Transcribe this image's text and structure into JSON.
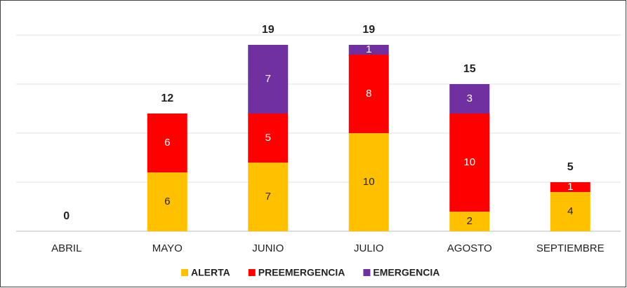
{
  "chart_data": {
    "type": "stacked_bar",
    "categories": [
      "ABRIL",
      "MAYO",
      "JUNIO",
      "JULIO",
      "AGOSTO",
      "SEPTIEMBRE"
    ],
    "series": [
      {
        "name": "ALERTA",
        "color": "#ffc000",
        "values": [
          0,
          6,
          7,
          10,
          2,
          4
        ]
      },
      {
        "name": "PREEMERGENCIA",
        "color": "#ff0000",
        "values": [
          0,
          6,
          5,
          8,
          10,
          1
        ]
      },
      {
        "name": "EMERGENCIA",
        "color": "#7030a0",
        "values": [
          0,
          0,
          7,
          1,
          3,
          0
        ]
      }
    ],
    "totals": [
      0,
      12,
      19,
      19,
      15,
      5
    ],
    "ylim": [
      0,
      20
    ],
    "yticks": [
      0,
      5,
      10,
      15,
      20
    ],
    "grid": true
  }
}
